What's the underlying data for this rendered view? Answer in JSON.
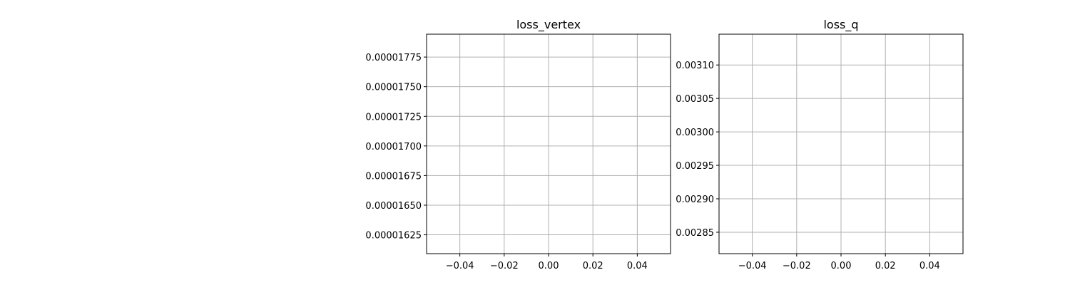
{
  "chart_data": [
    {
      "type": "line",
      "title": "loss_vertex",
      "xlabel": "",
      "ylabel": "",
      "grid": true,
      "xlim": [
        -0.055,
        0.055
      ],
      "ylim": [
        1.6091e-05,
        1.7943e-05
      ],
      "x_ticks": [
        -0.04,
        -0.02,
        0.0,
        0.02,
        0.04
      ],
      "x_tick_labels": [
        "−0.04",
        "−0.02",
        "0.00",
        "0.02",
        "0.04"
      ],
      "y_ticks": [
        1.625e-05,
        1.65e-05,
        1.675e-05,
        1.7e-05,
        1.725e-05,
        1.75e-05,
        1.775e-05
      ],
      "y_tick_labels": [
        "0.00001625",
        "0.00001650",
        "0.00001675",
        "0.00001700",
        "0.00001725",
        "0.00001750",
        "0.00001775"
      ],
      "series": [
        {
          "x": [],
          "y": []
        }
      ]
    },
    {
      "type": "line",
      "title": "loss_q",
      "xlabel": "",
      "ylabel": "",
      "grid": true,
      "xlim": [
        -0.055,
        0.055
      ],
      "ylim": [
        0.002818,
        0.003146
      ],
      "x_ticks": [
        -0.04,
        -0.02,
        0.0,
        0.02,
        0.04
      ],
      "x_tick_labels": [
        "−0.04",
        "−0.02",
        "0.00",
        "0.02",
        "0.04"
      ],
      "y_ticks": [
        0.00285,
        0.0029,
        0.00295,
        0.003,
        0.00305,
        0.0031
      ],
      "y_tick_labels": [
        "0.00285",
        "0.00290",
        "0.00295",
        "0.00300",
        "0.00305",
        "0.00310"
      ],
      "series": [
        {
          "x": [],
          "y": []
        }
      ]
    }
  ]
}
